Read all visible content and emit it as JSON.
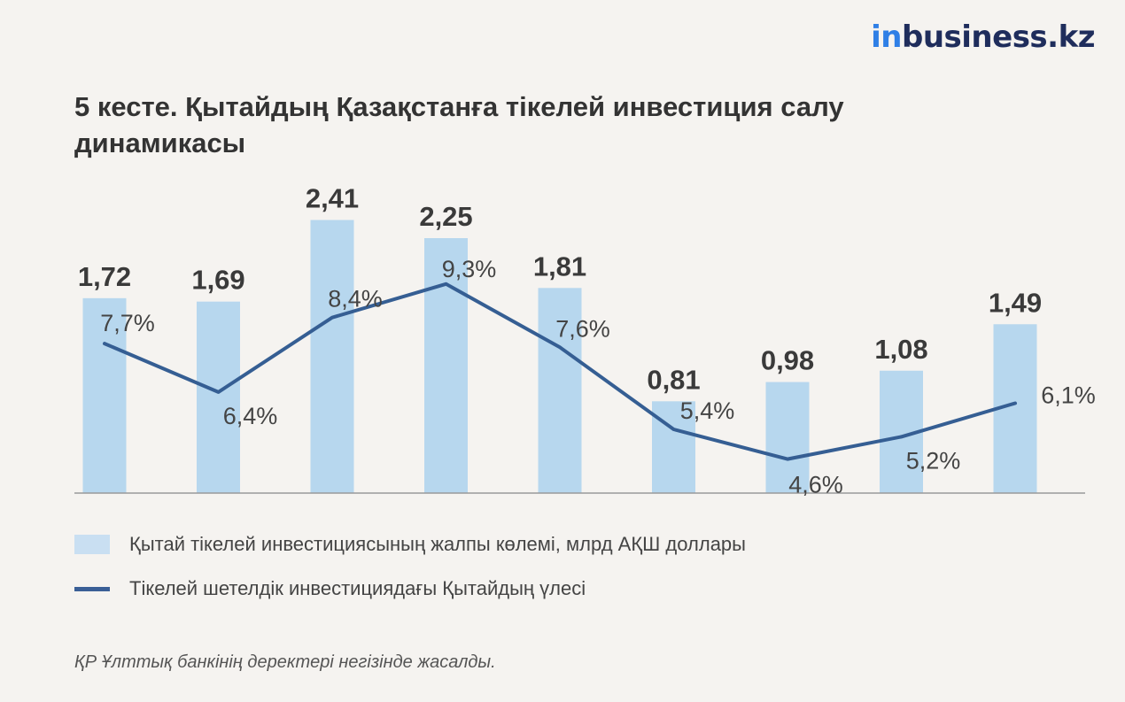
{
  "logo": {
    "part1": "in",
    "part2": "business.kz"
  },
  "header": {
    "title": "5 кесте. Қытайдың Қазақстанға тікелей инвестиция салу динамикасы"
  },
  "chart_data": {
    "type": "bar",
    "title": "5 кесте. Қытайдың Қазақстанға тікелей инвестиция салу динамикасы",
    "xlabel": "",
    "ylabel": "",
    "categories": [
      "",
      "",
      "",
      "",
      "",
      "",
      "",
      "",
      ""
    ],
    "series": [
      {
        "name": "Қытай тікелей инвестициясының жалпы көлемі, млрд АҚШ доллары",
        "type": "bar",
        "values": [
          1.72,
          1.69,
          2.41,
          2.25,
          1.81,
          0.81,
          0.98,
          1.08,
          1.49
        ],
        "labels": [
          "1,72",
          "1,69",
          "2,41",
          "2,25",
          "1,81",
          "0,81",
          "0,98",
          "1,08",
          "1,49"
        ],
        "color": "#b7d7ee"
      },
      {
        "name": "Тікелей шетелдік инвестициядағы Қытайдың үлесі",
        "type": "line",
        "values": [
          7.7,
          6.4,
          8.4,
          9.3,
          7.6,
          5.4,
          4.6,
          5.2,
          6.1
        ],
        "labels": [
          "7,7%",
          "6,4%",
          "8,4%",
          "9,3%",
          "7,6%",
          "5,4%",
          "4,6%",
          "5,2%",
          "6,1%"
        ],
        "color": "#355e93"
      }
    ],
    "legend_position": "bottom-left",
    "grid": false
  },
  "legend": {
    "bar_label": "Қытай тікелей инвестициясының жалпы көлемі, млрд АҚШ доллары",
    "line_label": "Тікелей шетелдік инвестициядағы Қытайдың үлесі"
  },
  "source": "ҚР Ұлттық банкінің деректері негізінде жасалды."
}
